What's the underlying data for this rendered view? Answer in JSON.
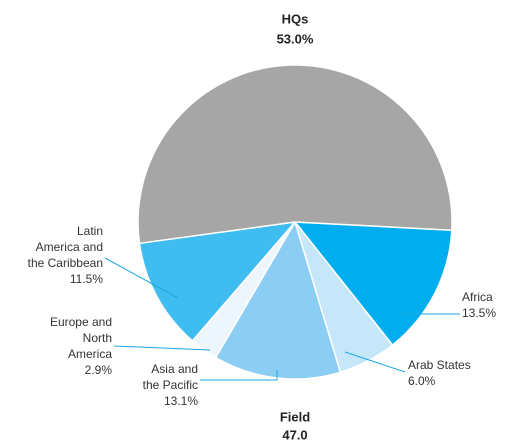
{
  "chart_data": {
    "type": "pie",
    "categories": [
      "HQs",
      "Africa",
      "Arab States",
      "Asia and\nthe Pacific",
      "Europe and\nNorth\nAmerica",
      "Latin\nAmerica and\nthe Caribbean"
    ],
    "values": [
      53.0,
      13.5,
      6.0,
      13.1,
      2.9,
      11.5
    ],
    "value_labels": [
      "53.0%",
      "13.5%",
      "6.0%",
      "13.1%",
      "2.9%",
      "11.5%"
    ],
    "colors": [
      "#a6a6a6",
      "#00aeef",
      "#c6e7f9",
      "#8ccdf3",
      "#eef6fd",
      "#3fbcf0"
    ],
    "annotation": {
      "text": "Field",
      "value_label": "47.0"
    }
  }
}
